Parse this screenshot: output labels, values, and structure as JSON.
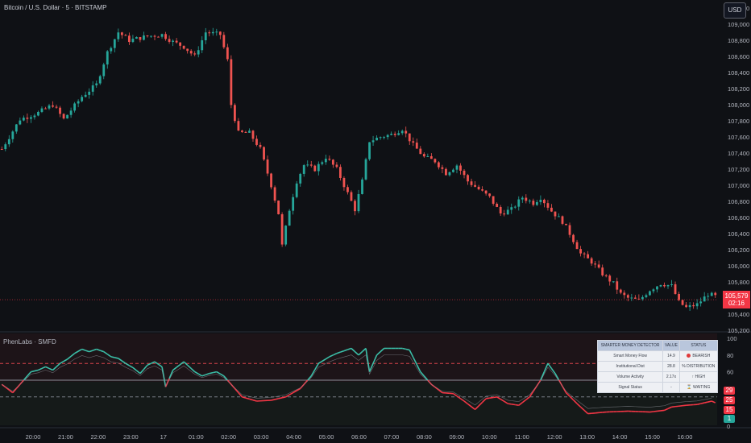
{
  "header": {
    "symbol_title": "Bitcoin / U.S. Dollar · 5 · BITSTAMP",
    "currency_button": "USD"
  },
  "indicator": {
    "title": "PhenLabs · SMFD",
    "right_ticks": [
      "100",
      "80",
      "60"
    ],
    "zero_label": "0"
  },
  "badges": {
    "v29": "29",
    "v25": "25",
    "v15": "15",
    "v1": "1"
  },
  "last_price": {
    "value": "105,579",
    "countdown": "02:16"
  },
  "table": {
    "headers": [
      "SMARTER MONEY DETECTOR",
      "VALUE",
      "STATUS"
    ],
    "rows": [
      [
        "Smart Money Flow",
        "14.9",
        "BEARISH"
      ],
      [
        "Institutional Dist",
        "28.8",
        "% DISTRIBUTION"
      ],
      [
        "Volume Activity",
        "2.17x",
        "↑ HIGH"
      ],
      [
        "Signal Status",
        "-",
        "⌛ WAITING"
      ]
    ]
  },
  "colors": {
    "bull": "#26a69a",
    "bear": "#ef5350",
    "smf_high": "#3bbfa8",
    "smf_low": "#f23645",
    "dashed_red": "#d8424a",
    "background": "#0f1115"
  },
  "chart_data": [
    {
      "type": "candlestick",
      "title": "Bitcoin / U.S. Dollar · 5 · BITSTAMP",
      "ylim": [
        105200,
        109200
      ],
      "y_ticks": [
        "109,200",
        "109,000",
        "108,800",
        "108,600",
        "108,400",
        "108,200",
        "108,000",
        "107,800",
        "107,600",
        "107,400",
        "107,200",
        "107,000",
        "106,800",
        "106,600",
        "106,400",
        "106,200",
        "106,000",
        "105,800",
        "105,600",
        "105,400",
        "105,200"
      ],
      "x_ticks": [
        "20:00",
        "21:00",
        "22:00",
        "23:00",
        "17",
        "01:00",
        "02:00",
        "03:00",
        "04:00",
        "05:00",
        "06:00",
        "07:00",
        "08:00",
        "09:00",
        "10:00",
        "11:00",
        "12:00",
        "13:00",
        "14:00",
        "15:00",
        "16:00"
      ],
      "price_path": [
        [
          0,
          107450
        ],
        [
          5,
          107820
        ],
        [
          10,
          107900
        ],
        [
          14,
          108000
        ],
        [
          17,
          107820
        ],
        [
          22,
          108100
        ],
        [
          26,
          108250
        ],
        [
          29,
          108650
        ],
        [
          32,
          108900
        ],
        [
          35,
          108800
        ],
        [
          40,
          108850
        ],
        [
          44,
          108870
        ],
        [
          47,
          108780
        ],
        [
          50,
          108720
        ],
        [
          53,
          108600
        ],
        [
          56,
          108900
        ],
        [
          60,
          108870
        ],
        [
          62,
          108550
        ],
        [
          63,
          108000
        ],
        [
          65,
          107650
        ],
        [
          68,
          107650
        ],
        [
          71,
          107450
        ],
        [
          74,
          107000
        ],
        [
          76,
          106650
        ],
        [
          77,
          106250
        ],
        [
          79,
          106700
        ],
        [
          81,
          107050
        ],
        [
          83,
          107250
        ],
        [
          86,
          107200
        ],
        [
          89,
          107350
        ],
        [
          92,
          107200
        ],
        [
          95,
          106900
        ],
        [
          97,
          106700
        ],
        [
          99,
          107050
        ],
        [
          101,
          107550
        ],
        [
          104,
          107600
        ],
        [
          107,
          107630
        ],
        [
          110,
          107700
        ],
        [
          113,
          107500
        ],
        [
          116,
          107350
        ],
        [
          119,
          107300
        ],
        [
          122,
          107150
        ],
        [
          125,
          107250
        ],
        [
          128,
          107050
        ],
        [
          131,
          106950
        ],
        [
          134,
          106850
        ],
        [
          137,
          106650
        ],
        [
          140,
          106700
        ],
        [
          143,
          106850
        ],
        [
          146,
          106780
        ],
        [
          148,
          106850
        ],
        [
          151,
          106680
        ],
        [
          154,
          106550
        ],
        [
          156,
          106400
        ],
        [
          159,
          106150
        ],
        [
          162,
          106050
        ],
        [
          165,
          105900
        ],
        [
          168,
          105780
        ],
        [
          170,
          105650
        ],
        [
          172,
          105600
        ],
        [
          175,
          105570
        ],
        [
          178,
          105700
        ],
        [
          181,
          105780
        ],
        [
          184,
          105750
        ],
        [
          186,
          105550
        ],
        [
          188,
          105480
        ],
        [
          191,
          105520
        ],
        [
          194,
          105650
        ],
        [
          196,
          105620
        ]
      ],
      "last_price": 105579,
      "last_price_label": "105,579"
    },
    {
      "type": "line",
      "title": "PhenLabs · SMFD",
      "ylim": [
        0,
        100
      ],
      "y_ticks": [
        "100",
        "80",
        "60"
      ],
      "levels": {
        "upper_dashed": 70,
        "middle_line": 50,
        "lower_dashed": 30
      },
      "series": [
        {
          "values": [
            [
              0,
              45
            ],
            [
              3,
              35
            ],
            [
              6,
              50
            ],
            [
              8,
              60
            ],
            [
              10,
              62
            ],
            [
              12,
              66
            ],
            [
              14,
              62
            ],
            [
              16,
              70
            ],
            [
              18,
              75
            ],
            [
              20,
              82
            ],
            [
              22,
              87
            ],
            [
              24,
              84
            ],
            [
              26,
              87
            ],
            [
              28,
              84
            ],
            [
              30,
              78
            ],
            [
              32,
              76
            ],
            [
              34,
              70
            ],
            [
              36,
              65
            ],
            [
              38,
              58
            ],
            [
              40,
              68
            ],
            [
              42,
              72
            ],
            [
              44,
              66
            ],
            [
              45,
              42
            ],
            [
              47,
              62
            ],
            [
              50,
              72
            ],
            [
              53,
              60
            ],
            [
              55,
              55
            ],
            [
              57,
              58
            ],
            [
              59,
              60
            ],
            [
              61,
              55
            ],
            [
              63,
              45
            ],
            [
              66,
              30
            ],
            [
              70,
              25
            ],
            [
              74,
              26
            ],
            [
              78,
              30
            ],
            [
              82,
              40
            ],
            [
              85,
              55
            ],
            [
              87,
              70
            ],
            [
              90,
              78
            ],
            [
              92,
              82
            ],
            [
              94,
              85
            ],
            [
              96,
              88
            ],
            [
              98,
              80
            ],
            [
              100,
              88
            ],
            [
              101,
              60
            ],
            [
              103,
              80
            ],
            [
              105,
              88
            ],
            [
              107,
              88
            ],
            [
              110,
              88
            ],
            [
              112,
              86
            ],
            [
              115,
              60
            ],
            [
              118,
              45
            ],
            [
              121,
              35
            ],
            [
              124,
              34
            ],
            [
              127,
              25
            ],
            [
              130,
              15
            ],
            [
              133,
              28
            ],
            [
              136,
              30
            ],
            [
              139,
              22
            ],
            [
              142,
              20
            ],
            [
              145,
              30
            ],
            [
              148,
              50
            ],
            [
              150,
              70
            ],
            [
              152,
              58
            ],
            [
              155,
              35
            ],
            [
              158,
              22
            ],
            [
              161,
              10
            ],
            [
              166,
              12
            ],
            [
              172,
              13
            ],
            [
              178,
              12
            ],
            [
              182,
              14
            ],
            [
              184,
              18
            ],
            [
              188,
              20
            ],
            [
              191,
              21
            ],
            [
              195,
              25
            ],
            [
              196,
              23
            ]
          ]
        }
      ]
    }
  ]
}
